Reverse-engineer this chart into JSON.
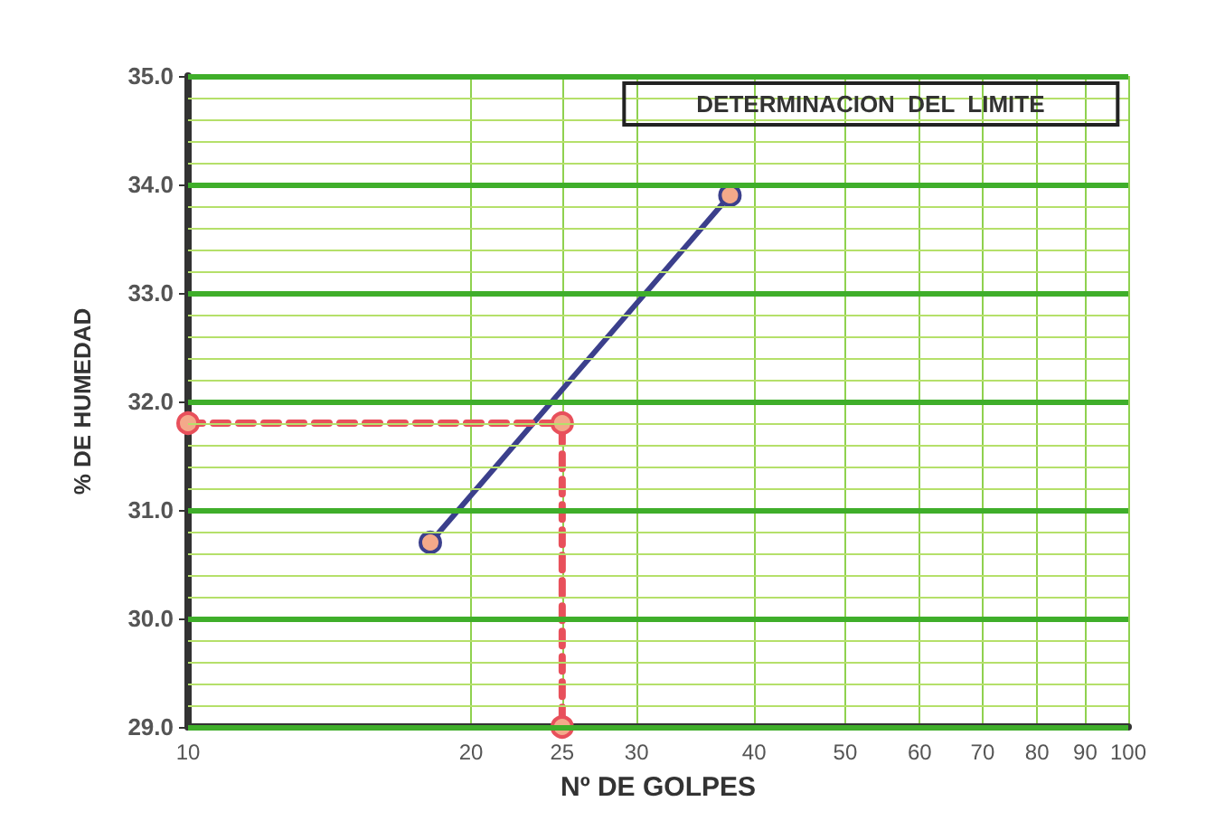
{
  "chart_data": {
    "type": "line",
    "title": "DETERMINACION  DEL  LIMITE",
    "xlabel": "Nº DE GOLPES",
    "ylabel": "% DE HUMEDAD",
    "log": "x",
    "grid": true,
    "marker": "circle",
    "xlim": [
      10,
      100
    ],
    "xticks": [
      10,
      20,
      25,
      30,
      40,
      50,
      60,
      70,
      80,
      90,
      100
    ],
    "ylim": [
      29,
      35
    ],
    "yticks": [
      {
        "value": 29,
        "label": "29.0"
      },
      {
        "value": 29.2,
        "label": null
      },
      {
        "value": 29.4,
        "label": null
      },
      {
        "value": 29.6,
        "label": null
      },
      {
        "value": 29.8,
        "label": null
      },
      {
        "value": 30,
        "label": "30.0"
      },
      {
        "value": 30.2,
        "label": null
      },
      {
        "value": 30.4,
        "label": null
      },
      {
        "value": 30.6,
        "label": null
      },
      {
        "value": 30.8,
        "label": null
      },
      {
        "value": 31,
        "label": "31.0"
      },
      {
        "value": 31.2,
        "label": null
      },
      {
        "value": 31.4,
        "label": null
      },
      {
        "value": 31.6,
        "label": null
      },
      {
        "value": 31.8,
        "label": null
      },
      {
        "value": 32,
        "label": "32.0"
      },
      {
        "value": 32.2,
        "label": null
      },
      {
        "value": 32.4,
        "label": null
      },
      {
        "value": 32.6,
        "label": null
      },
      {
        "value": 32.8,
        "label": null
      },
      {
        "value": 33,
        "label": "33.0"
      },
      {
        "value": 33.2,
        "label": null
      },
      {
        "value": 33.4,
        "label": null
      },
      {
        "value": 33.6,
        "label": null
      },
      {
        "value": 33.8,
        "label": null
      },
      {
        "value": 34,
        "label": "34.0"
      },
      {
        "value": 34.2,
        "label": null
      },
      {
        "value": 34.4,
        "label": null
      },
      {
        "value": 34.6,
        "label": null
      },
      {
        "value": 34.8,
        "label": null
      },
      {
        "value": 35,
        "label": "35.0"
      }
    ],
    "series": [
      {
        "color": "#3b3f8c",
        "x": [
          18.1,
          37.7
        ],
        "values": [
          30.7,
          33.9
        ],
        "line_style": "solid"
      },
      {
        "color": "#e8505b",
        "x": [
          10,
          25,
          25
        ],
        "values": [
          31.8,
          31.8,
          29
        ],
        "line_style": "dashed"
      }
    ]
  }
}
